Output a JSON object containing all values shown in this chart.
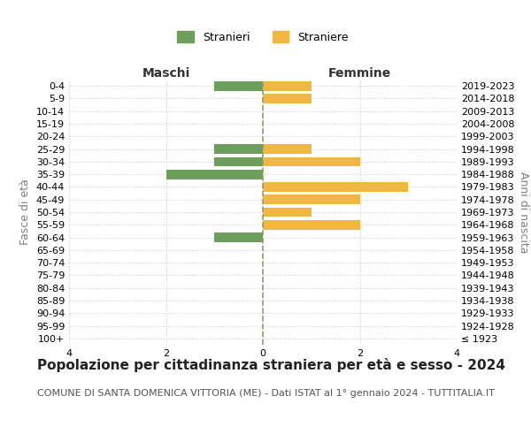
{
  "age_groups": [
    "100+",
    "95-99",
    "90-94",
    "85-89",
    "80-84",
    "75-79",
    "70-74",
    "65-69",
    "60-64",
    "55-59",
    "50-54",
    "45-49",
    "40-44",
    "35-39",
    "30-34",
    "25-29",
    "20-24",
    "15-19",
    "10-14",
    "5-9",
    "0-4"
  ],
  "birth_years": [
    "≤ 1923",
    "1924-1928",
    "1929-1933",
    "1934-1938",
    "1939-1943",
    "1944-1948",
    "1949-1953",
    "1954-1958",
    "1959-1963",
    "1964-1968",
    "1969-1973",
    "1974-1978",
    "1979-1983",
    "1984-1988",
    "1989-1993",
    "1994-1998",
    "1999-2003",
    "2004-2008",
    "2009-2013",
    "2014-2018",
    "2019-2023"
  ],
  "males": [
    0,
    0,
    0,
    0,
    0,
    0,
    0,
    0,
    1,
    0,
    0,
    0,
    0,
    2,
    1,
    1,
    0,
    0,
    0,
    0,
    1
  ],
  "females": [
    0,
    0,
    0,
    0,
    0,
    0,
    0,
    0,
    0,
    2,
    1,
    2,
    3,
    0,
    2,
    1,
    0,
    0,
    0,
    1,
    1
  ],
  "male_color": "#6e9e5e",
  "female_color": "#f0b842",
  "bar_height": 0.75,
  "xlim": 4,
  "title": "Popolazione per cittadinanza straniera per età e sesso - 2024",
  "subtitle": "COMUNE DI SANTA DOMENICA VITTORIA (ME) - Dati ISTAT al 1° gennaio 2024 - TUTTITALIA.IT",
  "left_axis_label": "Fasce di età",
  "right_axis_label": "Anni di nascita",
  "left_header": "Maschi",
  "right_header": "Femmine",
  "legend_stranieri": "Stranieri",
  "legend_straniere": "Straniere",
  "background_color": "#ffffff",
  "grid_color": "#cccccc",
  "title_fontsize": 11,
  "subtitle_fontsize": 8,
  "tick_fontsize": 8,
  "label_fontsize": 9,
  "header_fontsize": 10
}
